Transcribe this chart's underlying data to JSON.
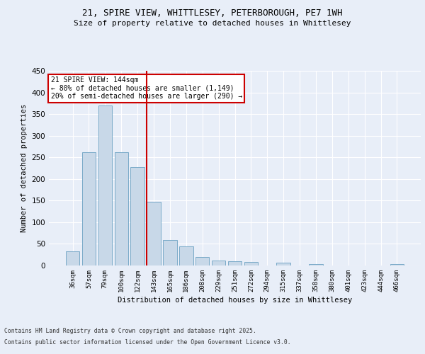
{
  "title1": "21, SPIRE VIEW, WHITTLESEY, PETERBOROUGH, PE7 1WH",
  "title2": "Size of property relative to detached houses in Whittlesey",
  "xlabel": "Distribution of detached houses by size in Whittlesey",
  "ylabel": "Number of detached properties",
  "bar_labels": [
    "36sqm",
    "57sqm",
    "79sqm",
    "100sqm",
    "122sqm",
    "143sqm",
    "165sqm",
    "186sqm",
    "208sqm",
    "229sqm",
    "251sqm",
    "272sqm",
    "294sqm",
    "315sqm",
    "337sqm",
    "358sqm",
    "380sqm",
    "401sqm",
    "423sqm",
    "444sqm",
    "466sqm"
  ],
  "bar_values": [
    33,
    262,
    370,
    262,
    228,
    148,
    59,
    44,
    20,
    11,
    10,
    8,
    0,
    6,
    0,
    3,
    0,
    0,
    0,
    0,
    3
  ],
  "bar_color": "#c8d8e8",
  "bar_edge_color": "#7aaac8",
  "marker_index": 5,
  "marker_label": "21 SPIRE VIEW: 144sqm",
  "annotation_line1": "← 80% of detached houses are smaller (1,149)",
  "annotation_line2": "20% of semi-detached houses are larger (290) →",
  "annotation_box_color": "#cc0000",
  "ylim": [
    0,
    450
  ],
  "yticks": [
    0,
    50,
    100,
    150,
    200,
    250,
    300,
    350,
    400,
    450
  ],
  "footer_line1": "Contains HM Land Registry data © Crown copyright and database right 2025.",
  "footer_line2": "Contains public sector information licensed under the Open Government Licence v3.0.",
  "bg_color": "#e8eef8",
  "plot_bg_color": "#e8eef8"
}
